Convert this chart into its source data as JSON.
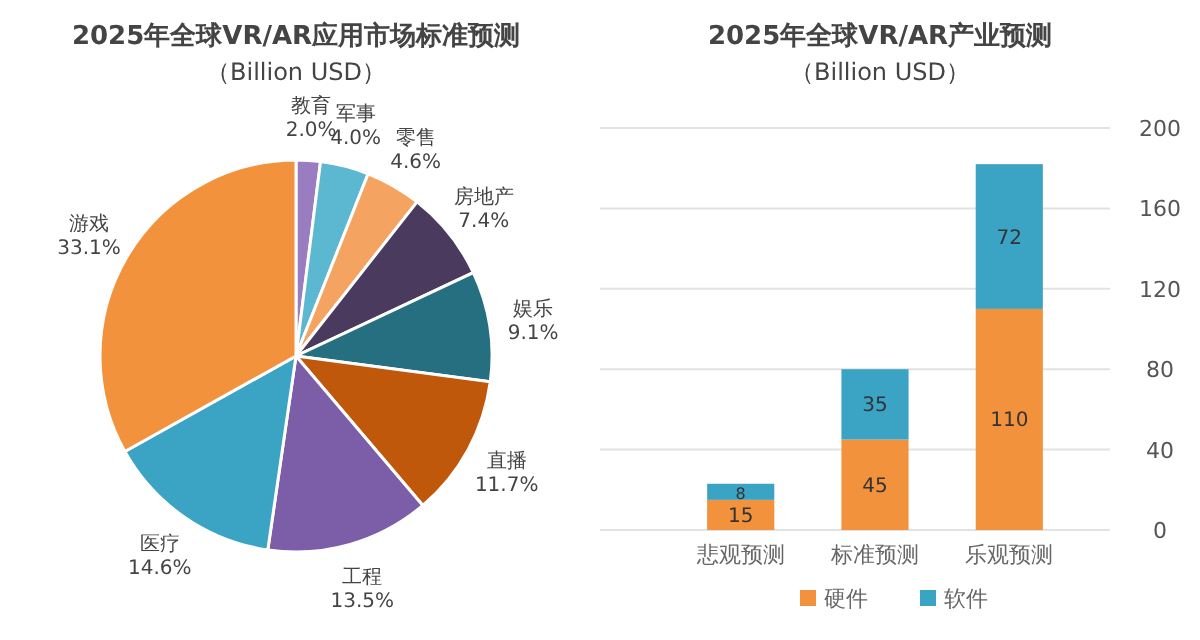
{
  "chart_data": [
    {
      "type": "pie",
      "title": "2025年全球VR/AR应用市场标准预测",
      "subtitle": "（Billion USD）",
      "categories": [
        "教育",
        "军事",
        "零售",
        "房地产",
        "娱乐",
        "直播",
        "工程",
        "医疗",
        "游戏"
      ],
      "values": [
        2.0,
        4.0,
        4.6,
        7.4,
        9.1,
        11.7,
        13.5,
        14.6,
        33.1
      ],
      "colors": [
        "#9a7cc0",
        "#5bb8d0",
        "#f4a460",
        "#4a3a5e",
        "#256f80",
        "#c0580c",
        "#7b5ea7",
        "#3ba3c4",
        "#f3923d"
      ],
      "value_labels": [
        "2.0%",
        "4.0%",
        "4.6%",
        "7.4%",
        "9.1%",
        "11.7%",
        "13.5%",
        "14.6%",
        "33.1%"
      ]
    },
    {
      "type": "bar",
      "title": "2025年全球VR/AR产业预测",
      "subtitle": "（Billion USD）",
      "categories": [
        "悲观预测",
        "标准预测",
        "乐观预测"
      ],
      "stacked": true,
      "series": [
        {
          "name": "硬件",
          "color": "#f3923d",
          "values": [
            15,
            45,
            110
          ]
        },
        {
          "name": "软件",
          "color": "#3ba3c4",
          "values": [
            8,
            35,
            72
          ]
        }
      ],
      "ylim": [
        0,
        200
      ],
      "yticks": [
        0,
        40,
        80,
        120,
        160,
        200
      ],
      "grid": "y",
      "legend": "bottom",
      "data_labels": true
    }
  ]
}
